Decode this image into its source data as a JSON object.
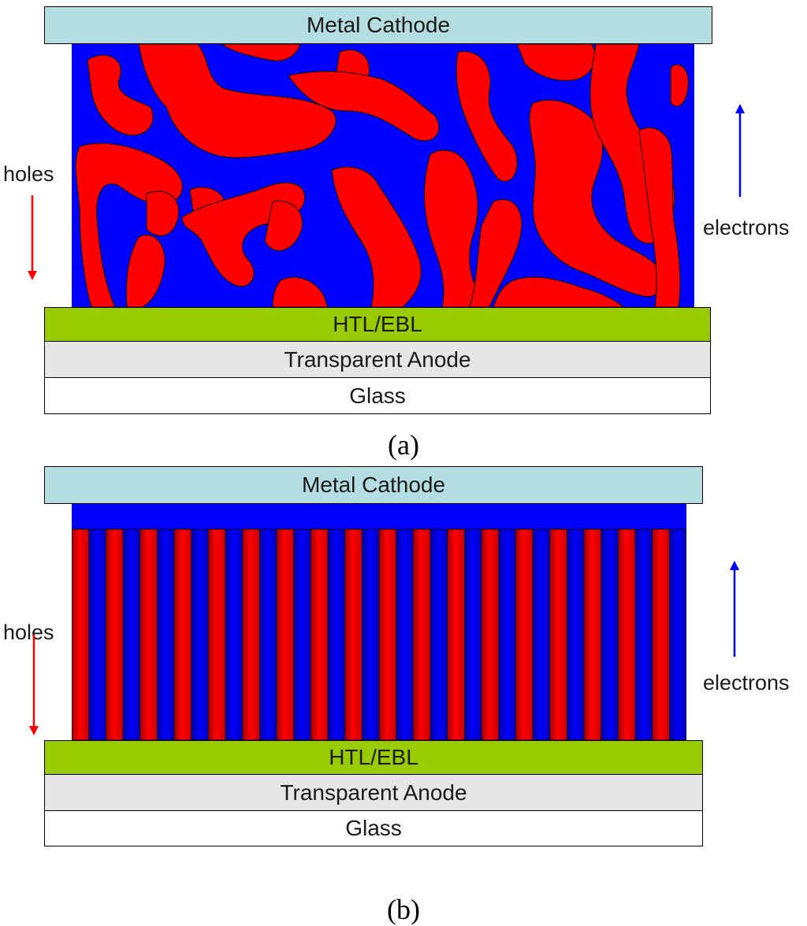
{
  "colors": {
    "cathode": "#b3dde0",
    "donor": "#ff0000",
    "acceptor": "#0000ff",
    "htl": "#99cc00",
    "anode": "#e6e6e6",
    "glass": "#ffffff",
    "hole_arrow": "#ff0000",
    "electron_arrow": "#0000ff"
  },
  "panel_a": {
    "layers": {
      "cathode": "Metal Cathode",
      "htl": "HTL/EBL",
      "anode": "Transparent Anode",
      "glass": "Glass"
    },
    "holes_label": "holes",
    "electrons_label": "electrons",
    "caption": "(a)"
  },
  "panel_b": {
    "layers": {
      "cathode": "Metal Cathode",
      "htl": "HTL/EBL",
      "anode": "Transparent Anode",
      "glass": "Glass"
    },
    "holes_label": "holes",
    "electrons_label": "electrons",
    "caption": "(b)"
  }
}
